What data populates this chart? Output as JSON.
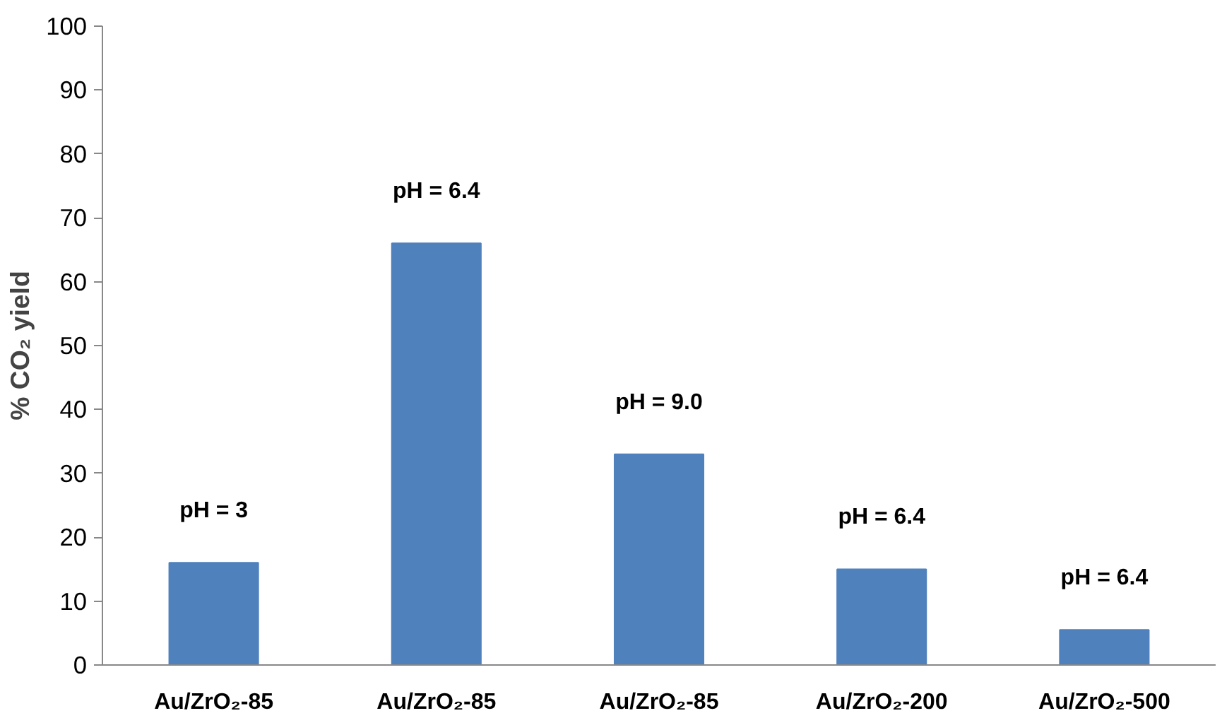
{
  "chart_data": {
    "type": "bar",
    "ylabel": "% CO₂ yield",
    "categories": [
      "Au/ZrO₂-85",
      "Au/ZrO₂-85",
      "Au/ZrO₂-85",
      "Au/ZrO₂-200",
      "Au/ZrO₂-500"
    ],
    "values": [
      16,
      66,
      33,
      15,
      5.5
    ],
    "color": "#4f81bd",
    "ylim": [
      0,
      100
    ],
    "yticks": [
      0,
      10,
      20,
      30,
      40,
      50,
      60,
      70,
      80,
      90,
      100
    ],
    "grid": false,
    "legend": false,
    "annotations": [
      "pH = 3",
      "pH = 6.4",
      "pH = 9.0",
      "pH = 6.4",
      "pH = 6.4"
    ]
  }
}
